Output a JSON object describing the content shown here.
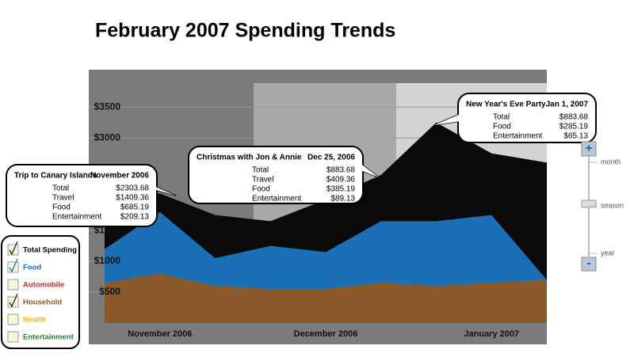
{
  "title": "February 2007 Spending Trends",
  "chart_data": {
    "type": "area",
    "categories": [
      null,
      "November 2006",
      null,
      null,
      "December 2006",
      null,
      null,
      "January 2007",
      null
    ],
    "series": [
      {
        "color": "#0a0a0a",
        "values": [
          2050,
          2100,
          1750,
          1650,
          2000,
          2400,
          3250,
          2750,
          2600
        ]
      },
      {
        "color": "#1a6fb5",
        "values": [
          1200,
          1800,
          1050,
          1250,
          1150,
          1650,
          1650,
          1750,
          700
        ]
      },
      {
        "color": "#8a5a2b",
        "values": [
          650,
          800,
          600,
          550,
          550,
          650,
          600,
          650,
          700
        ]
      }
    ],
    "ylim": [
      0,
      3850
    ],
    "yticks": [
      {
        "value": 500,
        "label": "$500"
      },
      {
        "value": 1000,
        "label": "$1000"
      },
      {
        "value": 1500,
        "label": "$1500"
      },
      {
        "value": 3000,
        "label": "$3000"
      },
      {
        "value": 3500,
        "label": "$3500"
      }
    ],
    "grid": true
  },
  "legend": [
    {
      "label": "Total Spending",
      "color": "#000000",
      "checked": true
    },
    {
      "label": "Food",
      "color": "#1a6fb5",
      "checked": true
    },
    {
      "label": "Automobile",
      "color": "#c0282d",
      "checked": false
    },
    {
      "label": "Household",
      "color": "#8a5a2b",
      "checked": true
    },
    {
      "label": "Health",
      "color": "#f2b418",
      "checked": false
    },
    {
      "label": "Entertainment",
      "color": "#2d7a3a",
      "checked": false
    }
  ],
  "callouts": [
    {
      "title": "Trip to Canary Islands",
      "date": "November 2006",
      "rows": [
        {
          "label": "Total",
          "value": "$2303.68"
        },
        {
          "label": "Travel",
          "value": "$1409.36"
        },
        {
          "label": "Food",
          "value": "$685.19"
        },
        {
          "label": "Entertainment",
          "value": "$209.13"
        }
      ]
    },
    {
      "title": "Christmas with Jon & Annie",
      "date": "Dec 25, 2006",
      "rows": [
        {
          "label": "Total",
          "value": "$883.68"
        },
        {
          "label": "Travel",
          "value": "$409.36"
        },
        {
          "label": "Food",
          "value": "$385.19"
        },
        {
          "label": "Entertainment",
          "value": "$89.13"
        }
      ]
    },
    {
      "title": "New Year's Eve Party",
      "date": "Jan 1, 2007",
      "rows": [
        {
          "label": "Total",
          "value": "$883.68"
        },
        {
          "label": "Food",
          "value": "$285.19"
        },
        {
          "label": "Entertainment",
          "value": "$65.13"
        }
      ]
    }
  ],
  "zoom": {
    "zoom_in": "+",
    "zoom_out": "-",
    "levels": [
      "month",
      "season",
      "year"
    ]
  }
}
